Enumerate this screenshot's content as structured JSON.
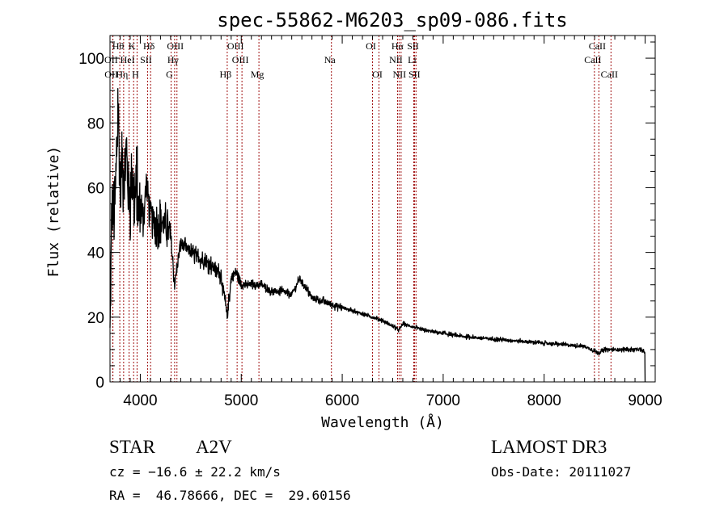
{
  "chart_data": {
    "type": "line",
    "title": "spec-55862-M6203_sp09-086.fits",
    "xlabel": "Wavelength (Å)",
    "ylabel": "Flux (relative)",
    "xlim": [
      3700,
      9100
    ],
    "ylim": [
      0,
      107
    ],
    "xticks": [
      4000,
      5000,
      6000,
      7000,
      8000,
      9000
    ],
    "xtick_labels": [
      "4000",
      "5000",
      "6000",
      "7000",
      "8000",
      "9000"
    ],
    "yticks": [
      0,
      20,
      40,
      60,
      80,
      100
    ],
    "ytick_labels": [
      "0",
      "20",
      "40",
      "60",
      "80",
      "100"
    ],
    "grid": false,
    "line_color": "#000000",
    "marker_color": "#a01010",
    "series": [
      {
        "name": "spectrum",
        "x": [
          3700,
          3720,
          3740,
          3760,
          3780,
          3800,
          3820,
          3840,
          3860,
          3880,
          3900,
          3920,
          3940,
          3960,
          3980,
          4000,
          4030,
          4060,
          4100,
          4150,
          4200,
          4250,
          4300,
          4340,
          4400,
          4500,
          4600,
          4700,
          4800,
          4861,
          4900,
          4950,
          5000,
          5100,
          5200,
          5300,
          5400,
          5500,
          5580,
          5700,
          5800,
          5890,
          6000,
          6200,
          6400,
          6563,
          6600,
          6800,
          7000,
          7200,
          7400,
          7600,
          7800,
          8000,
          8200,
          8400,
          8500,
          8542,
          8600,
          8800,
          8950,
          9000,
          9001
        ],
        "y": [
          14,
          55,
          50,
          62,
          88,
          58,
          70,
          64,
          72,
          60,
          58,
          66,
          55,
          60,
          52,
          55,
          50,
          62,
          52,
          48,
          50,
          48,
          45,
          30,
          43,
          40,
          38,
          36,
          33,
          20,
          32,
          34,
          30,
          30,
          30,
          28,
          28,
          27,
          32,
          26,
          25,
          24,
          23,
          21,
          19,
          16,
          18,
          16,
          15,
          14,
          13.5,
          13,
          12.5,
          12,
          11.5,
          11,
          9.5,
          9,
          10,
          10,
          10,
          9,
          0
        ]
      }
    ],
    "spectral_lines": [
      {
        "label": "Hθ",
        "wavelength": 3797,
        "row": 1
      },
      {
        "label": "K",
        "wavelength": 3934,
        "row": 1
      },
      {
        "label": "Hδ",
        "wavelength": 4102,
        "row": 1
      },
      {
        "label": "OIII",
        "wavelength": 4363,
        "row": 1
      },
      {
        "label": "OIII",
        "wavelength": 4959,
        "row": 1
      },
      {
        "label": "OI",
        "wavelength": 6300,
        "row": 1
      },
      {
        "label": "Hα",
        "wavelength": 6563,
        "row": 1
      },
      {
        "label": "SII",
        "wavelength": 6717,
        "row": 1
      },
      {
        "label": "CaII",
        "wavelength": 8542,
        "row": 1
      },
      {
        "label": "OII",
        "wavelength": 3727,
        "row": 2
      },
      {
        "label": "HeI",
        "wavelength": 3889,
        "row": 2
      },
      {
        "label": "SII",
        "wavelength": 4072,
        "row": 2
      },
      {
        "label": "Hγ",
        "wavelength": 4340,
        "row": 2
      },
      {
        "label": "OIII",
        "wavelength": 5007,
        "row": 2
      },
      {
        "label": "Na",
        "wavelength": 5893,
        "row": 2
      },
      {
        "label": "NII",
        "wavelength": 6548,
        "row": 2
      },
      {
        "label": "Li",
        "wavelength": 6708,
        "row": 2
      },
      {
        "label": "CaII",
        "wavelength": 8498,
        "row": 2
      },
      {
        "label": "OII",
        "wavelength": 3729,
        "row": 3
      },
      {
        "label": "Hη",
        "wavelength": 3835,
        "row": 3
      },
      {
        "label": "H",
        "wavelength": 3968,
        "row": 3
      },
      {
        "label": "G",
        "wavelength": 4305,
        "row": 3
      },
      {
        "label": "Hβ",
        "wavelength": 4861,
        "row": 3
      },
      {
        "label": "Mg",
        "wavelength": 5175,
        "row": 3
      },
      {
        "label": "OI",
        "wavelength": 6364,
        "row": 3
      },
      {
        "label": "NII",
        "wavelength": 6583,
        "row": 3
      },
      {
        "label": "SII",
        "wavelength": 6731,
        "row": 3
      },
      {
        "label": "CaII",
        "wavelength": 8662,
        "row": 3
      }
    ]
  },
  "footer": {
    "class_label": "STAR",
    "subclass": "A2V",
    "velocity": "cz = −16.6 ± 22.2 km/s",
    "coords": "RA =  46.78666, DEC =  29.60156",
    "survey": "LAMOST DR3",
    "obs_date": "Obs-Date: 20111027"
  }
}
